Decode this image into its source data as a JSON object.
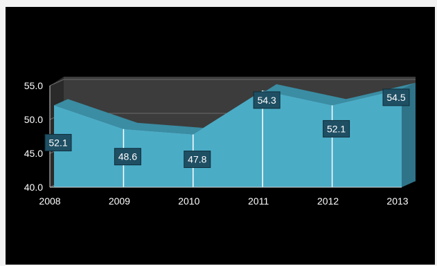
{
  "chart_data": {
    "type": "area",
    "categories": [
      "2008",
      "2009",
      "2010",
      "2011",
      "2012",
      "2013"
    ],
    "series": [
      {
        "values": [
          52.1,
          48.6,
          47.8,
          54.3,
          52.1,
          54.5
        ]
      }
    ],
    "data_labels": [
      "52.1",
      "48.6",
      "47.8",
      "54.3",
      "52.1",
      "54.5"
    ],
    "yticks": [
      "40.0",
      "45.0",
      "50.0",
      "55.0"
    ],
    "ylim": [
      40,
      55
    ],
    "grid": true,
    "style": "3d",
    "colors": {
      "area": "#4bacc6",
      "area_top": "#3a8da3",
      "back_wall": "#3c3c3c",
      "label_box": "#1f4f63",
      "background": "#000000"
    }
  }
}
